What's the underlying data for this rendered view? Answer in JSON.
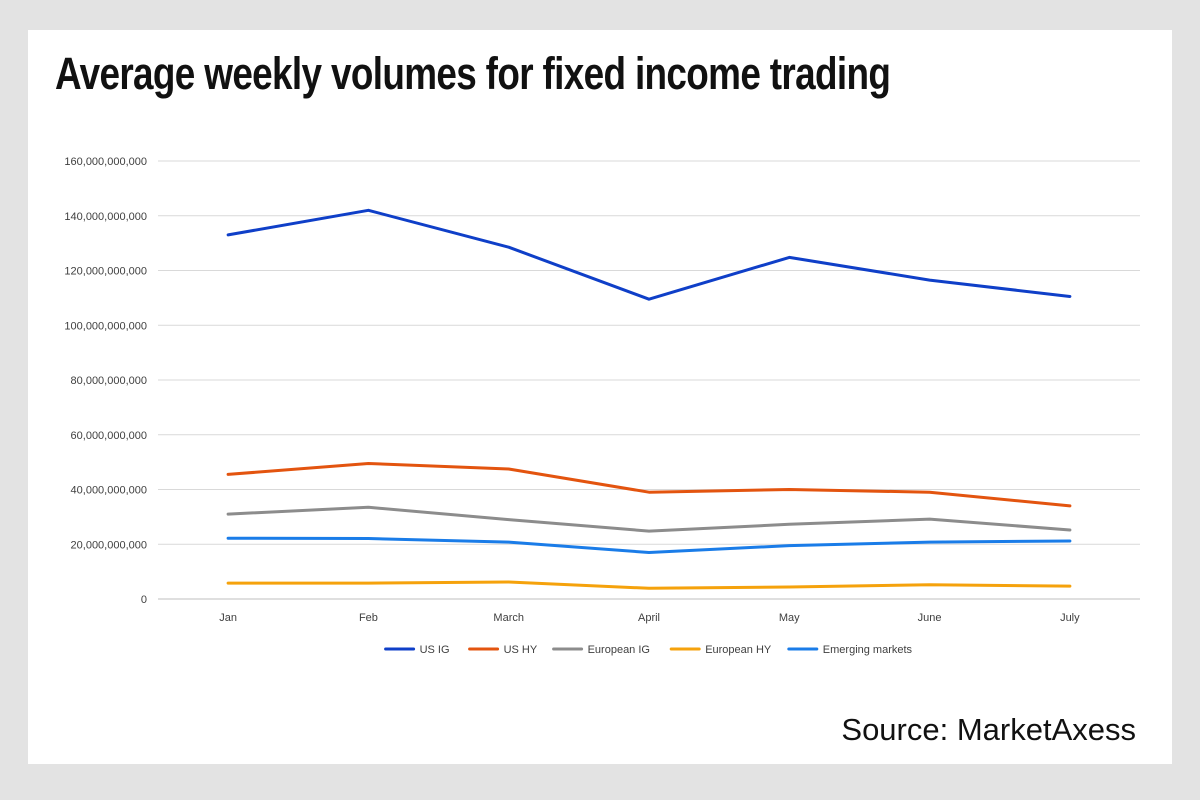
{
  "title": "Average weekly volumes for fixed income trading",
  "source": "Source: MarketAxess",
  "chart_data": {
    "type": "line",
    "categories": [
      "Jan",
      "Feb",
      "March",
      "April",
      "May",
      "June",
      "July"
    ],
    "ylim": [
      0,
      160000000000
    ],
    "yticks": [
      0,
      20000000000,
      40000000000,
      60000000000,
      80000000000,
      100000000000,
      120000000000,
      140000000000,
      160000000000
    ],
    "ytick_labels": [
      "0",
      "20,000,000,000",
      "40,000,000,000",
      "60,000,000,000",
      "80,000,000,000",
      "100,000,000,000",
      "120,000,000,000",
      "140,000,000,000",
      "160,000,000,000"
    ],
    "grid": true,
    "legend_position": "bottom",
    "series": [
      {
        "name": "US IG",
        "color": "#0f3fc8",
        "values": [
          133000000000,
          142000000000,
          128500000000,
          109500000000,
          124800000000,
          116500000000,
          110500000000
        ]
      },
      {
        "name": "US HY",
        "color": "#e3540f",
        "values": [
          45500000000,
          49500000000,
          47500000000,
          39000000000,
          40000000000,
          39000000000,
          34000000000
        ]
      },
      {
        "name": "European IG",
        "color": "#8c8c8c",
        "values": [
          31000000000,
          33500000000,
          29000000000,
          24800000000,
          27300000000,
          29200000000,
          25200000000
        ]
      },
      {
        "name": "European HY",
        "color": "#f5a20c",
        "values": [
          5800000000,
          5800000000,
          6200000000,
          3900000000,
          4400000000,
          5200000000,
          4700000000
        ]
      },
      {
        "name": "Emerging markets",
        "color": "#1a7ce8",
        "values": [
          22200000000,
          22100000000,
          20800000000,
          17000000000,
          19500000000,
          20800000000,
          21200000000
        ]
      }
    ]
  }
}
